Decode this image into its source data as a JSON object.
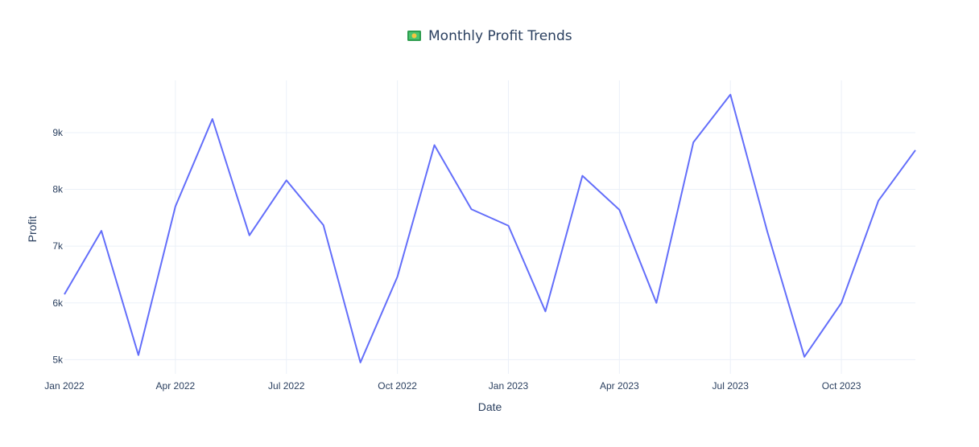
{
  "chart_data": {
    "type": "line",
    "title": "Monthly Profit Trends",
    "title_icon": "money-banknote-icon",
    "xlabel": "Date",
    "ylabel": "Profit",
    "x_tick_labels": [
      "Jan 2022",
      "Apr 2022",
      "Jul 2022",
      "Oct 2022",
      "Jan 2023",
      "Apr 2023",
      "Jul 2023",
      "Oct 2023"
    ],
    "y_tick_labels": [
      "5k",
      "6k",
      "7k",
      "8k",
      "9k"
    ],
    "y_ticks": [
      5000,
      6000,
      7000,
      8000,
      9000
    ],
    "ylim": [
      4750,
      9920
    ],
    "xlim": [
      "2022-01",
      "2023-12"
    ],
    "grid": true,
    "line_color": "#636efa",
    "x": [
      "2022-01",
      "2022-02",
      "2022-03",
      "2022-04",
      "2022-05",
      "2022-06",
      "2022-07",
      "2022-08",
      "2022-09",
      "2022-10",
      "2022-11",
      "2022-12",
      "2023-01",
      "2023-02",
      "2023-03",
      "2023-04",
      "2023-05",
      "2023-06",
      "2023-07",
      "2023-08",
      "2023-09",
      "2023-10",
      "2023-11",
      "2023-12"
    ],
    "values": [
      6150,
      7270,
      5080,
      7700,
      9240,
      7190,
      8160,
      7370,
      4950,
      6460,
      8780,
      7650,
      7360,
      5850,
      8240,
      7640,
      6000,
      8830,
      9670,
      7250,
      5050,
      6000,
      7800,
      8690
    ]
  }
}
